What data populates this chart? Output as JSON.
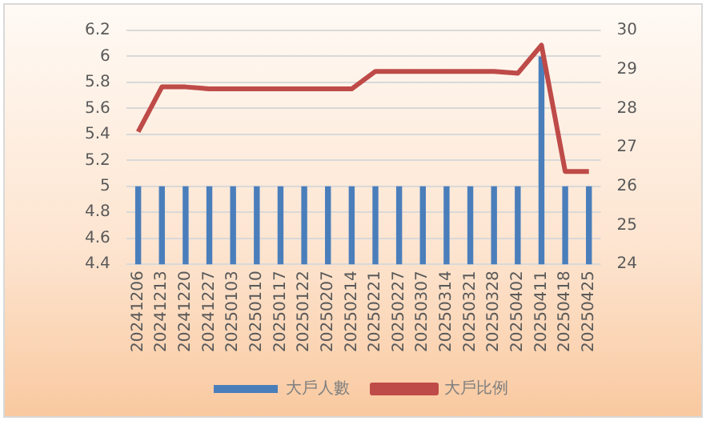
{
  "chart_data": {
    "type": "bar",
    "categories": [
      "20241206",
      "20241213",
      "20241220",
      "20241227",
      "20250103",
      "20250110",
      "20250117",
      "20250122",
      "20250207",
      "20250214",
      "20250221",
      "20250227",
      "20250307",
      "20250314",
      "20250321",
      "20250328",
      "20250402",
      "20250411",
      "20250418",
      "20250425"
    ],
    "series": [
      {
        "name": "大戶人數",
        "color": "#4a7ebb",
        "values": [
          5,
          5,
          5,
          5,
          5,
          5,
          5,
          5,
          5,
          5,
          5,
          5,
          5,
          5,
          5,
          5,
          5,
          6,
          5,
          5
        ]
      },
      {
        "name": "大戶比例",
        "type": "line",
        "axis": "y2",
        "color": "#be4b48",
        "values": [
          27.4,
          28.55,
          28.55,
          28.5,
          28.5,
          28.5,
          28.5,
          28.5,
          28.5,
          28.5,
          28.95,
          28.95,
          28.95,
          28.95,
          28.95,
          28.95,
          28.9,
          29.62,
          26.38,
          26.38
        ]
      }
    ],
    "ylim": [
      4.4,
      6.2
    ],
    "yticks": [
      4.4,
      4.6,
      4.8,
      5,
      5.2,
      5.4,
      5.6,
      5.8,
      6,
      6.2
    ],
    "y2lim": [
      24,
      30
    ],
    "y2ticks": [
      24,
      25,
      26,
      27,
      28,
      29,
      30
    ],
    "grid": "y",
    "legend": "bottom",
    "marker": "none"
  }
}
